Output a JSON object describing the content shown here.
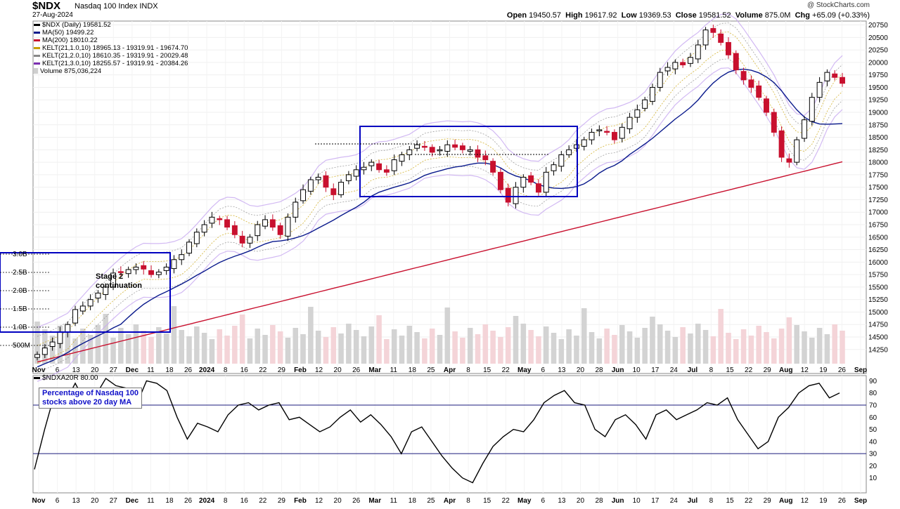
{
  "header": {
    "symbol": "$NDX",
    "name": "Nasdaq 100 Index",
    "exchange": "INDX",
    "date": "27-Aug-2024",
    "brand": "@ StockCharts.com",
    "open_label": "Open",
    "open": "19450.57",
    "high_label": "High",
    "high": "19617.92",
    "low_label": "Low",
    "low": "19369.53",
    "close_label": "Close",
    "close": "19581.52",
    "volume_label": "Volume",
    "volume": "875.0M",
    "chg_label": "Chg",
    "chg": "+65.09 (+0.33%)"
  },
  "legend": [
    {
      "text": "$NDX (Daily) 19581.52",
      "color": "#000000"
    },
    {
      "text": "MA(50) 19499.22",
      "color": "#0a1a8c"
    },
    {
      "text": "MA(200) 18010.22",
      "color": "#c8102e"
    },
    {
      "text": "KELT(21,1.0,10) 18965.13 - 19319.91 - 19674.70",
      "color": "#c8a000"
    },
    {
      "text": "KELT(21,2.0,10) 18610.35 - 19319.91 - 20029.48",
      "color": "#888888"
    },
    {
      "text": "KELT(21,3.0,10) 18255.57 - 19319.91 - 20384.26",
      "color": "#7b2fb0"
    },
    {
      "text": "Volume 875,036,224",
      "color": "#cfcfcf"
    }
  ],
  "annotations": {
    "stage_note_line1": "Stage 2",
    "stage_note_line2": "continuation",
    "breadth_note_line1": "Percentage of Nasdaq 100",
    "breadth_note_line2": "stocks above 20 day MA"
  },
  "indicator": {
    "title": "$NDXA20R 80.00",
    "hlines": [
      70,
      30
    ]
  },
  "colors": {
    "up": "#000000",
    "down": "#c8102e",
    "ma50": "#0a1a8c",
    "ma200": "#c8102e",
    "kelt1": "#c8a000",
    "kelt2": "#888888",
    "kelt3": "#c7a8f0",
    "volume": "#d3d3d3",
    "volume_down": "#f4d4d8",
    "box": "#0000c0"
  },
  "chart_data": [
    {
      "type": "candlestick",
      "title": "$NDX (Daily)",
      "y_ticks": [
        14250,
        14500,
        14750,
        15000,
        15250,
        15500,
        15750,
        16000,
        16250,
        16500,
        16750,
        17000,
        17250,
        17500,
        17750,
        18000,
        18250,
        18500,
        18750,
        19000,
        19250,
        19500,
        19750,
        20000,
        20250,
        20500,
        20750
      ],
      "ylim": [
        14050,
        20800
      ],
      "volume_ticks": [
        "500M",
        "1.0B",
        "1.5B",
        "2.0B",
        "2.5B",
        "3.0B"
      ],
      "x_ticks": [
        "Nov",
        "6",
        "13",
        "20",
        "27",
        "Dec",
        "11",
        "18",
        "26",
        "2024",
        "8",
        "16",
        "22",
        "29",
        "Feb",
        "12",
        "20",
        "26",
        "Mar",
        "11",
        "18",
        "25",
        "Apr",
        "8",
        "15",
        "22",
        "May",
        "6",
        "13",
        "20",
        "28",
        "Jun",
        "10",
        "17",
        "24",
        "Jul",
        "8",
        "15",
        "22",
        "29",
        "Aug",
        "12",
        "19",
        "26",
        "Sep"
      ],
      "x_bold": [
        "Nov",
        "Dec",
        "2024",
        "Feb",
        "Mar",
        "Apr",
        "May",
        "Jun",
        "Jul",
        "Aug",
        "Sep"
      ],
      "close_series": [
        14150,
        14280,
        14400,
        14600,
        14750,
        15050,
        15120,
        15250,
        15380,
        15500,
        15780,
        15800,
        15850,
        15900,
        15860,
        15750,
        15800,
        15900,
        16050,
        16150,
        16400,
        16600,
        16750,
        16900,
        16850,
        16700,
        16550,
        16380,
        16500,
        16750,
        16850,
        16700,
        16550,
        16900,
        17200,
        17450,
        17650,
        17700,
        17500,
        17350,
        17600,
        17750,
        17850,
        17900,
        18000,
        17850,
        17800,
        18050,
        18150,
        18250,
        18350,
        18300,
        18200,
        18250,
        18350,
        18300,
        18250,
        18250,
        18100,
        18050,
        17800,
        17450,
        17200,
        17500,
        17700,
        17600,
        17400,
        17800,
        17950,
        18150,
        18250,
        18350,
        18450,
        18600,
        18650,
        18600,
        18450,
        18700,
        18900,
        19050,
        19250,
        19500,
        19800,
        19900,
        20000,
        19950,
        20100,
        20350,
        20650,
        20600,
        20400,
        20150,
        19850,
        19650,
        19500,
        19300,
        19000,
        18600,
        18100,
        18000,
        18450,
        18850,
        19300,
        19600,
        19800,
        19700,
        19581
      ]
    },
    {
      "type": "line",
      "title": "$NDXA20R",
      "y_ticks": [
        10,
        20,
        30,
        40,
        50,
        60,
        70,
        80,
        90
      ],
      "ylim": [
        0,
        92
      ],
      "values": [
        17,
        50,
        80,
        72,
        88,
        72,
        78,
        92,
        86,
        84,
        70,
        90,
        88,
        82,
        60,
        42,
        55,
        52,
        48,
        62,
        70,
        72,
        66,
        70,
        72,
        58,
        60,
        54,
        48,
        52,
        60,
        66,
        56,
        62,
        54,
        44,
        30,
        48,
        52,
        40,
        28,
        18,
        10,
        6,
        22,
        36,
        44,
        50,
        48,
        58,
        72,
        78,
        82,
        72,
        70,
        50,
        44,
        58,
        62,
        54,
        42,
        62,
        66,
        58,
        62,
        66,
        72,
        70,
        76,
        58,
        46,
        34,
        40,
        60,
        68,
        80,
        86,
        88,
        76,
        80
      ],
      "last": 80
    }
  ]
}
